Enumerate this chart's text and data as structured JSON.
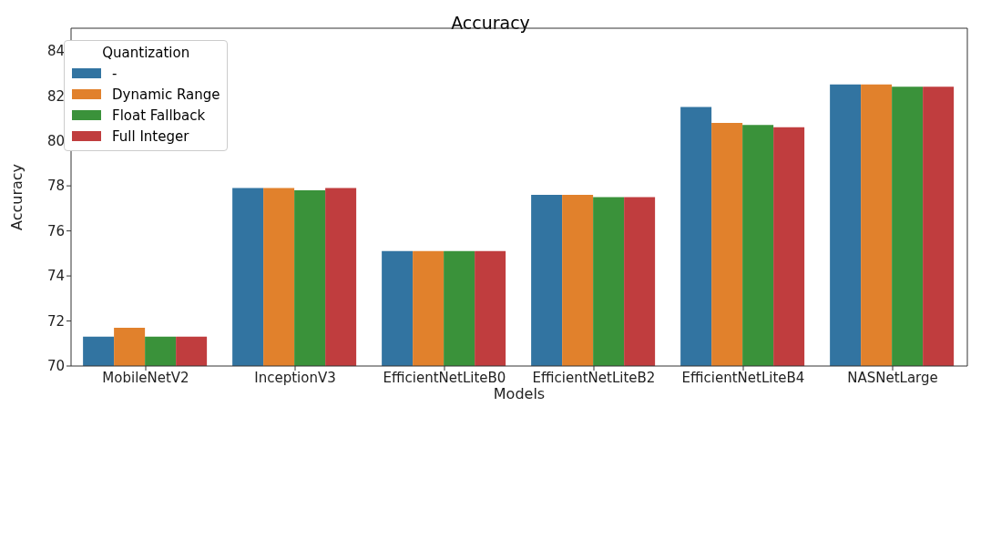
{
  "chart_data": {
    "type": "bar",
    "title": "Accuracy",
    "xlabel": "Models",
    "ylabel": "Accuracy",
    "legend_title": "Quantization",
    "categories": [
      "MobileNetV2",
      "InceptionV3",
      "EfficientNetLiteB0",
      "EfficientNetLiteB2",
      "EfficientNetLiteB4",
      "NASNetLarge"
    ],
    "series": [
      {
        "name": "-",
        "color": "#3274a1",
        "values": [
          71.3,
          77.9,
          75.1,
          77.6,
          81.5,
          82.5
        ]
      },
      {
        "name": "Dynamic Range",
        "color": "#e1812c",
        "values": [
          71.7,
          77.9,
          75.1,
          77.6,
          80.8,
          82.5
        ]
      },
      {
        "name": "Float Fallback",
        "color": "#3a923a",
        "values": [
          71.3,
          77.8,
          75.1,
          77.5,
          80.7,
          82.4
        ]
      },
      {
        "name": "Full Integer",
        "color": "#c03d3e",
        "values": [
          71.3,
          77.9,
          75.1,
          77.5,
          80.6,
          82.4
        ]
      }
    ],
    "ylim": [
      70,
      85
    ],
    "yticks": [
      70,
      72,
      74,
      76,
      78,
      80,
      82,
      84
    ],
    "grid": false,
    "legend": "top left"
  }
}
